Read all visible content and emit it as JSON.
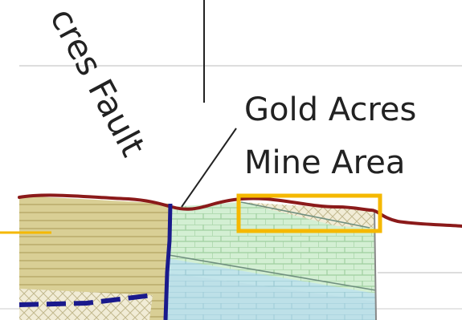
{
  "labels": {
    "fault": "cres Fault",
    "mine_line1": "Gold Acres",
    "mine_line2": "Mine Area"
  },
  "colors": {
    "topography_line": "#8b1a1a",
    "fault_line": "#1a1a8c",
    "highlight_box": "#f5b800",
    "left_unit_fill": "#d9cf95",
    "right_unit_fill": "#cfeccf",
    "lower_unit_fill": "#b8e0e6",
    "grid_line": "#dddddd"
  },
  "icons": {
    "highlight": "highlight-box",
    "leader": "leader-line"
  }
}
